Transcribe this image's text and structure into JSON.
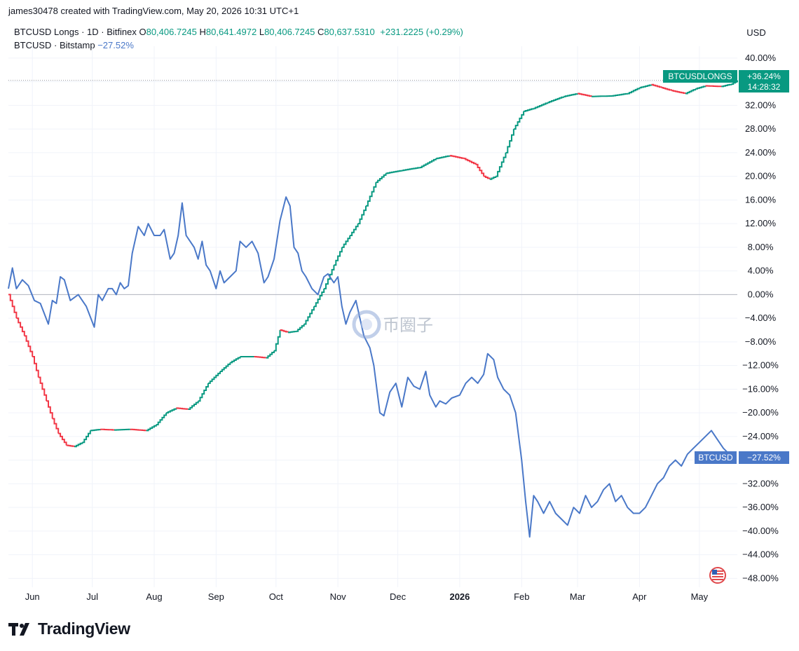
{
  "header": {
    "created_by": "james30478 created with TradingView.com, May 20, 2026 10:31 UTC+1"
  },
  "legend": {
    "main_symbol": "BTCUSD Longs · 1D · Bitfinex",
    "o_label": "O",
    "o_value": "80,406.7245",
    "h_label": "H",
    "h_value": "80,641.4972",
    "l_label": "L",
    "l_value": "80,406.7245",
    "c_label": "C",
    "c_value": "80,637.5310",
    "change": "+231.2225 (+0.29%)",
    "compare_symbol": "BTCUSD · Bitstamp",
    "compare_value": "−27.52%"
  },
  "axis": {
    "currency": "USD"
  },
  "labels": {
    "longs_name": "BTCUSDLONGS",
    "longs_value": "+36.24%",
    "countdown": "14:28:32",
    "btc_name": "BTCUSD",
    "btc_value": "−27.52%"
  },
  "watermark": "币圈子",
  "brand": {
    "name": "TradingView"
  },
  "colors": {
    "longs_up": "#089981",
    "longs_down": "#f23645",
    "btc_line": "#4a78c8",
    "longs_label_bg": "#089981",
    "btc_label_bg": "#4a78c8"
  },
  "chart_data": {
    "type": "line",
    "y_unit": "%",
    "ylim": [
      -49.5,
      42
    ],
    "y_ticks": [
      "40.00%",
      "36.00%",
      "32.00%",
      "28.00%",
      "24.00%",
      "20.00%",
      "16.00%",
      "12.00%",
      "8.00%",
      "4.00%",
      "0.00%",
      "−4.00%",
      "−8.00%",
      "−12.00%",
      "−16.00%",
      "−20.00%",
      "−24.00%",
      "−28.00%",
      "−32.00%",
      "−36.00%",
      "−40.00%",
      "−44.00%",
      "−48.00%"
    ],
    "y_tick_values": [
      40,
      36,
      32,
      28,
      24,
      20,
      16,
      12,
      8,
      4,
      0,
      -4,
      -8,
      -12,
      -16,
      -20,
      -24,
      -28,
      -32,
      -36,
      -40,
      -44,
      -48
    ],
    "x_ticks": [
      "Jun",
      "Jul",
      "Aug",
      "Sep",
      "Oct",
      "Nov",
      "Dec",
      "2026",
      "Feb",
      "Mar",
      "Apr",
      "May"
    ],
    "x_tick_dates": [
      "2025-06-01",
      "2025-07-01",
      "2025-08-01",
      "2025-09-01",
      "2025-10-01",
      "2025-11-01",
      "2025-12-01",
      "2026-01-01",
      "2026-02-01",
      "2026-03-01",
      "2026-04-01",
      "2026-05-01"
    ],
    "x_range": [
      "2025-05-20",
      "2026-05-20"
    ],
    "series": [
      {
        "name": "BTCUSD Longs",
        "style": "candles",
        "points": [
          [
            "2025-05-20",
            0
          ],
          [
            "2025-05-24",
            -4
          ],
          [
            "2025-05-28",
            -7
          ],
          [
            "2025-06-01",
            -10.5
          ],
          [
            "2025-06-04",
            -14
          ],
          [
            "2025-06-08",
            -18
          ],
          [
            "2025-06-11",
            -21
          ],
          [
            "2025-06-14",
            -23.5
          ],
          [
            "2025-06-18",
            -25.5
          ],
          [
            "2025-06-22",
            -25.7
          ],
          [
            "2025-06-26",
            -25
          ],
          [
            "2025-06-30",
            -23
          ],
          [
            "2025-07-05",
            -22.8
          ],
          [
            "2025-07-12",
            -22.9
          ],
          [
            "2025-07-20",
            -22.8
          ],
          [
            "2025-07-28",
            -23
          ],
          [
            "2025-08-02",
            -22
          ],
          [
            "2025-08-07",
            -20
          ],
          [
            "2025-08-12",
            -19.2
          ],
          [
            "2025-08-18",
            -19.4
          ],
          [
            "2025-08-23",
            -18
          ],
          [
            "2025-08-28",
            -15
          ],
          [
            "2025-09-03",
            -13
          ],
          [
            "2025-09-08",
            -11.5
          ],
          [
            "2025-09-13",
            -10.5
          ],
          [
            "2025-09-20",
            -10.5
          ],
          [
            "2025-09-26",
            -10.7
          ],
          [
            "2025-09-30",
            -9.5
          ],
          [
            "2025-10-03",
            -6
          ],
          [
            "2025-10-07",
            -6.4
          ],
          [
            "2025-10-11",
            -6.2
          ],
          [
            "2025-10-15",
            -5
          ],
          [
            "2025-10-20",
            -2
          ],
          [
            "2025-10-25",
            1
          ],
          [
            "2025-10-30",
            5
          ],
          [
            "2025-11-03",
            8
          ],
          [
            "2025-11-07",
            10
          ],
          [
            "2025-11-11",
            12
          ],
          [
            "2025-11-15",
            15
          ],
          [
            "2025-11-20",
            19
          ],
          [
            "2025-11-25",
            20.5
          ],
          [
            "2025-12-03",
            21
          ],
          [
            "2025-12-12",
            21.5
          ],
          [
            "2025-12-20",
            23
          ],
          [
            "2025-12-27",
            23.5
          ],
          [
            "2026-01-03",
            23
          ],
          [
            "2026-01-09",
            22
          ],
          [
            "2026-01-13",
            20
          ],
          [
            "2026-01-16",
            19.5
          ],
          [
            "2026-01-19",
            20
          ],
          [
            "2026-01-24",
            24
          ],
          [
            "2026-01-28",
            28
          ],
          [
            "2026-02-02",
            31
          ],
          [
            "2026-02-07",
            31.5
          ],
          [
            "2026-02-14",
            32.5
          ],
          [
            "2026-02-22",
            33.5
          ],
          [
            "2026-03-01",
            34
          ],
          [
            "2026-03-08",
            33.5
          ],
          [
            "2026-03-18",
            33.6
          ],
          [
            "2026-03-26",
            34
          ],
          [
            "2026-04-01",
            35
          ],
          [
            "2026-04-07",
            35.5
          ],
          [
            "2026-04-12",
            35
          ],
          [
            "2026-04-17",
            34.5
          ],
          [
            "2026-04-24",
            34
          ],
          [
            "2026-04-29",
            34.8
          ],
          [
            "2026-05-04",
            35.3
          ],
          [
            "2026-05-12",
            35.2
          ],
          [
            "2026-05-17",
            35.6
          ],
          [
            "2026-05-20",
            36.24
          ]
        ]
      },
      {
        "name": "BTCUSD",
        "style": "line",
        "points": [
          [
            "2025-05-20",
            1
          ],
          [
            "2025-05-22",
            4.5
          ],
          [
            "2025-05-24",
            1
          ],
          [
            "2025-05-27",
            2.5
          ],
          [
            "2025-05-30",
            1.5
          ],
          [
            "2025-06-02",
            -1
          ],
          [
            "2025-06-05",
            -1.5
          ],
          [
            "2025-06-09",
            -5
          ],
          [
            "2025-06-11",
            -1
          ],
          [
            "2025-06-13",
            -1.5
          ],
          [
            "2025-06-15",
            3
          ],
          [
            "2025-06-17",
            2.5
          ],
          [
            "2025-06-20",
            -1
          ],
          [
            "2025-06-24",
            0
          ],
          [
            "2025-06-28",
            -2
          ],
          [
            "2025-07-02",
            -5.5
          ],
          [
            "2025-07-04",
            0
          ],
          [
            "2025-07-06",
            -1
          ],
          [
            "2025-07-09",
            1
          ],
          [
            "2025-07-11",
            1
          ],
          [
            "2025-07-13",
            0
          ],
          [
            "2025-07-15",
            2
          ],
          [
            "2025-07-17",
            1
          ],
          [
            "2025-07-19",
            1.5
          ],
          [
            "2025-07-21",
            7
          ],
          [
            "2025-07-24",
            11.5
          ],
          [
            "2025-07-27",
            10
          ],
          [
            "2025-07-29",
            12
          ],
          [
            "2025-08-01",
            10
          ],
          [
            "2025-08-04",
            10
          ],
          [
            "2025-08-06",
            11
          ],
          [
            "2025-08-09",
            6
          ],
          [
            "2025-08-11",
            7
          ],
          [
            "2025-08-13",
            10
          ],
          [
            "2025-08-15",
            15.5
          ],
          [
            "2025-08-17",
            10
          ],
          [
            "2025-08-19",
            9
          ],
          [
            "2025-08-21",
            8
          ],
          [
            "2025-08-23",
            6
          ],
          [
            "2025-08-25",
            9
          ],
          [
            "2025-08-27",
            5
          ],
          [
            "2025-08-29",
            4
          ],
          [
            "2025-09-01",
            1
          ],
          [
            "2025-09-03",
            4
          ],
          [
            "2025-09-05",
            2
          ],
          [
            "2025-09-08",
            3
          ],
          [
            "2025-09-11",
            4
          ],
          [
            "2025-09-13",
            9
          ],
          [
            "2025-09-16",
            8
          ],
          [
            "2025-09-19",
            9
          ],
          [
            "2025-09-22",
            7
          ],
          [
            "2025-09-25",
            2
          ],
          [
            "2025-09-27",
            3
          ],
          [
            "2025-09-30",
            6
          ],
          [
            "2025-10-03",
            12.5
          ],
          [
            "2025-10-06",
            16.5
          ],
          [
            "2025-10-08",
            15
          ],
          [
            "2025-10-10",
            8
          ],
          [
            "2025-10-12",
            7
          ],
          [
            "2025-10-14",
            4
          ],
          [
            "2025-10-16",
            3
          ],
          [
            "2025-10-19",
            1
          ],
          [
            "2025-10-22",
            0
          ],
          [
            "2025-10-25",
            3
          ],
          [
            "2025-10-27",
            3.5
          ],
          [
            "2025-10-30",
            2
          ],
          [
            "2025-11-01",
            3
          ],
          [
            "2025-11-03",
            -2
          ],
          [
            "2025-11-05",
            -5
          ],
          [
            "2025-11-07",
            -3
          ],
          [
            "2025-11-10",
            -1
          ],
          [
            "2025-11-12",
            -4
          ],
          [
            "2025-11-14",
            -7
          ],
          [
            "2025-11-17",
            -9
          ],
          [
            "2025-11-19",
            -12
          ],
          [
            "2025-11-22",
            -20
          ],
          [
            "2025-11-24",
            -20.5
          ],
          [
            "2025-11-27",
            -16.5
          ],
          [
            "2025-11-30",
            -15
          ],
          [
            "2025-12-03",
            -19
          ],
          [
            "2025-12-06",
            -14
          ],
          [
            "2025-12-09",
            -15.5
          ],
          [
            "2025-12-12",
            -16
          ],
          [
            "2025-12-15",
            -13
          ],
          [
            "2025-12-17",
            -17
          ],
          [
            "2025-12-20",
            -19
          ],
          [
            "2025-12-22",
            -18
          ],
          [
            "2025-12-25",
            -18.5
          ],
          [
            "2025-12-28",
            -17.5
          ],
          [
            "2026-01-01",
            -17
          ],
          [
            "2026-01-04",
            -15
          ],
          [
            "2026-01-07",
            -14
          ],
          [
            "2026-01-10",
            -15
          ],
          [
            "2026-01-13",
            -13.5
          ],
          [
            "2026-01-15",
            -10
          ],
          [
            "2026-01-18",
            -11
          ],
          [
            "2026-01-20",
            -14
          ],
          [
            "2026-01-23",
            -16
          ],
          [
            "2026-01-26",
            -17
          ],
          [
            "2026-01-29",
            -20
          ],
          [
            "2026-02-01",
            -28
          ],
          [
            "2026-02-03",
            -35
          ],
          [
            "2026-02-05",
            -41
          ],
          [
            "2026-02-07",
            -34
          ],
          [
            "2026-02-09",
            -35
          ],
          [
            "2026-02-12",
            -37
          ],
          [
            "2026-02-15",
            -35
          ],
          [
            "2026-02-18",
            -37
          ],
          [
            "2026-02-21",
            -38
          ],
          [
            "2026-02-24",
            -39
          ],
          [
            "2026-02-27",
            -36
          ],
          [
            "2026-03-02",
            -37
          ],
          [
            "2026-03-05",
            -34
          ],
          [
            "2026-03-08",
            -36
          ],
          [
            "2026-03-11",
            -35
          ],
          [
            "2026-03-14",
            -33
          ],
          [
            "2026-03-17",
            -32
          ],
          [
            "2026-03-20",
            -35
          ],
          [
            "2026-03-23",
            -34
          ],
          [
            "2026-03-26",
            -36
          ],
          [
            "2026-03-29",
            -37
          ],
          [
            "2026-04-01",
            -37
          ],
          [
            "2026-04-04",
            -36
          ],
          [
            "2026-04-07",
            -34
          ],
          [
            "2026-04-10",
            -32
          ],
          [
            "2026-04-13",
            -31
          ],
          [
            "2026-04-16",
            -29
          ],
          [
            "2026-04-19",
            -28
          ],
          [
            "2026-04-22",
            -29
          ],
          [
            "2026-04-25",
            -27
          ],
          [
            "2026-04-28",
            -26
          ],
          [
            "2026-05-01",
            -25
          ],
          [
            "2026-05-04",
            -24
          ],
          [
            "2026-05-07",
            -23
          ],
          [
            "2026-05-10",
            -24.5
          ],
          [
            "2026-05-13",
            -26
          ],
          [
            "2026-05-16",
            -27
          ],
          [
            "2026-05-19",
            -27.52
          ]
        ]
      }
    ]
  }
}
